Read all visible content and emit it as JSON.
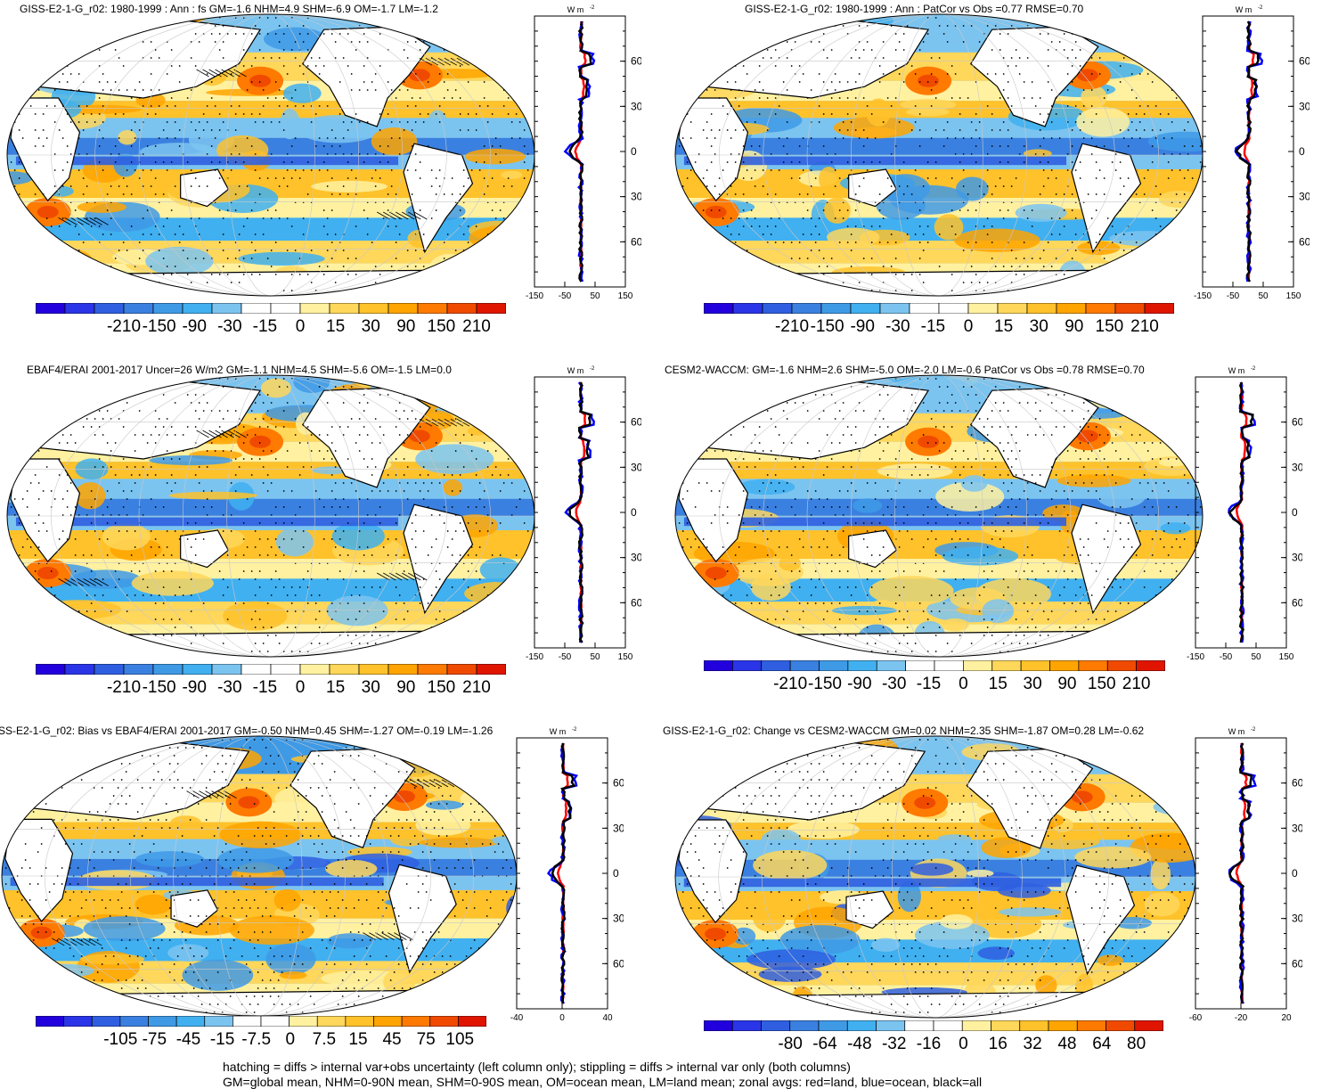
{
  "panels": [
    {
      "id": "p1",
      "title": "GISS-E2-1-G_r02: 1980-1999 : Ann : fs GM=-1.6 NHM=4.9 SHM=-6.9 OM=-1.7 LM=-1.2",
      "colorbar_labels": [
        "-210",
        "-150",
        "-90",
        "-30",
        "-15",
        "0",
        "15",
        "30",
        "90",
        "150",
        "210"
      ],
      "zonal_units": "W m",
      "zonal_units_sup": "-2",
      "zonal_lat_labels": [
        "60N",
        "30N",
        "0",
        "30S",
        "60S"
      ],
      "zonal_x_labels": [
        "-150",
        "-50",
        "50",
        "150"
      ]
    },
    {
      "id": "p2",
      "title": "GISS-E2-1-G_r02: 1980-1999 : Ann : PatCor vs Obs =0.77 RMSE=0.70",
      "colorbar_labels": [
        "-210",
        "-150",
        "-90",
        "-30",
        "-15",
        "0",
        "15",
        "30",
        "90",
        "150",
        "210"
      ],
      "zonal_units": "W m",
      "zonal_units_sup": "-2",
      "zonal_lat_labels": [
        "60N",
        "30N",
        "0",
        "30S",
        "60S"
      ],
      "zonal_x_labels": [
        "-150",
        "-50",
        "50",
        "150"
      ]
    },
    {
      "id": "p3",
      "title": "EBAF4/ERAI 2001-2017 Uncer=26 W/m2 GM=-1.1 NHM=4.5 SHM=-5.6 OM=-1.5 LM=0.0",
      "colorbar_labels": [
        "-210",
        "-150",
        "-90",
        "-30",
        "-15",
        "0",
        "15",
        "30",
        "90",
        "150",
        "210"
      ],
      "zonal_units": "W m",
      "zonal_units_sup": "-2",
      "zonal_lat_labels": [
        "60N",
        "30N",
        "0",
        "30S",
        "60S"
      ],
      "zonal_x_labels": [
        "-150",
        "-50",
        "50",
        "150"
      ]
    },
    {
      "id": "p4",
      "title": "CESM2-WACCM: GM=-1.6 NHM=2.6 SHM=-5.0 OM=-2.0 LM=-0.6 PatCor vs Obs =0.78 RMSE=0.70",
      "colorbar_labels": [
        "-210",
        "-150",
        "-90",
        "-30",
        "-15",
        "0",
        "15",
        "30",
        "90",
        "150",
        "210"
      ],
      "zonal_units": "W m",
      "zonal_units_sup": "-2",
      "zonal_lat_labels": [
        "60N",
        "30N",
        "0",
        "30S",
        "60S"
      ],
      "zonal_x_labels": [
        "-150",
        "-50",
        "50",
        "150"
      ]
    },
    {
      "id": "p5",
      "title": "SS-E2-1-G_r02: Bias vs EBAF4/ERAI 2001-2017 GM=-0.50 NHM=0.45 SHM=-1.27 OM=-0.19 LM=-1.26",
      "colorbar_labels": [
        "-105",
        "-75",
        "-45",
        "-15",
        "-7.5",
        "0",
        "7.5",
        "15",
        "45",
        "75",
        "105"
      ],
      "zonal_units": "W m",
      "zonal_units_sup": "-2",
      "zonal_lat_labels": [
        "60N",
        "30N",
        "0",
        "30S",
        "60S"
      ],
      "zonal_x_labels": [
        "-40",
        "0",
        "40"
      ]
    },
    {
      "id": "p6",
      "title": "GISS-E2-1-G_r02: Change vs CESM2-WACCM GM=0.02 NHM=2.35 SHM=-1.87 OM=0.28 LM=-0.62",
      "colorbar_labels": [
        "-80",
        "-64",
        "-48",
        "-32",
        "-16",
        "0",
        "16",
        "32",
        "48",
        "64",
        "80"
      ],
      "zonal_units": "W m",
      "zonal_units_sup": "-2",
      "zonal_lat_labels": [
        "60N",
        "30N",
        "0",
        "30S",
        "60S"
      ],
      "zonal_x_labels": [
        "-60",
        "-20",
        "20"
      ]
    }
  ],
  "colors": {
    "levels": [
      "#2200dd",
      "#2a35e8",
      "#2f5fe0",
      "#3a80e0",
      "#3f9ae6",
      "#40b0f0",
      "#7cc4f0",
      "#ffffff",
      "#ffffff",
      "#fff1a0",
      "#ffd75a",
      "#ffc22a",
      "#ffa400",
      "#ff7a00",
      "#f04a00",
      "#e01500"
    ],
    "land": "#ffffff",
    "zonal_land": "#ff0000",
    "zonal_ocean": "#0000ff",
    "zonal_all": "#000000"
  },
  "chart_data": [
    {
      "type": "heatmap",
      "title": "GISS-E2-1-G_r02: 1980-1999 : Ann : fs GM=-1.6 NHM=4.9 SHM=-6.9 OM=-1.7 LM=-1.2",
      "colorbar": [
        -210,
        -150,
        -90,
        -30,
        -15,
        0,
        15,
        30,
        90,
        150,
        210
      ],
      "zonal_xlim": [
        -150,
        150
      ],
      "ylim": [
        -90,
        90
      ]
    },
    {
      "type": "heatmap",
      "title": "GISS-E2-1-G_r02: 1980-1999 : Ann : PatCor vs Obs =0.77 RMSE=0.70",
      "colorbar": [
        -210,
        -150,
        -90,
        -30,
        -15,
        0,
        15,
        30,
        90,
        150,
        210
      ],
      "zonal_xlim": [
        -150,
        150
      ],
      "ylim": [
        -90,
        90
      ]
    },
    {
      "type": "heatmap",
      "title": "EBAF4/ERAI 2001-2017 Uncer=26 W/m2 GM=-1.1 NHM=4.5 SHM=-5.6 OM=-1.5 LM=0.0",
      "colorbar": [
        -210,
        -150,
        -90,
        -30,
        -15,
        0,
        15,
        30,
        90,
        150,
        210
      ],
      "zonal_xlim": [
        -150,
        150
      ],
      "ylim": [
        -90,
        90
      ]
    },
    {
      "type": "heatmap",
      "title": "CESM2-WACCM: GM=-1.6 NHM=2.6 SHM=-5.0 OM=-2.0 LM=-0.6 PatCor vs Obs =0.78 RMSE=0.70",
      "colorbar": [
        -210,
        -150,
        -90,
        -30,
        -15,
        0,
        15,
        30,
        90,
        150,
        210
      ],
      "zonal_xlim": [
        -150,
        150
      ],
      "ylim": [
        -90,
        90
      ]
    },
    {
      "type": "heatmap",
      "title": "SS-E2-1-G_r02: Bias vs EBAF4/ERAI 2001-2017 GM=-0.50 NHM=0.45 SHM=-1.27 OM=-0.19 LM=-1.26",
      "colorbar": [
        -105,
        -75,
        -45,
        -15,
        -7.5,
        0,
        7.5,
        15,
        45,
        75,
        105
      ],
      "zonal_xlim": [
        -40,
        40
      ],
      "ylim": [
        -90,
        90
      ]
    },
    {
      "type": "heatmap",
      "title": "GISS-E2-1-G_r02: Change vs CESM2-WACCM GM=0.02 NHM=2.35 SHM=-1.87 OM=0.28 LM=-0.62",
      "colorbar": [
        -80,
        -64,
        -48,
        -32,
        -16,
        0,
        16,
        32,
        48,
        64,
        80
      ],
      "zonal_xlim": [
        -60,
        20
      ],
      "ylim": [
        -90,
        90
      ]
    }
  ],
  "footer": {
    "line1": "hatching = diffs > internal var+obs uncertainty (left column only); stippling = diffs > internal var only (both columns)",
    "line2": "GM=global mean, NHM=0-90N mean, SHM=0-90S mean, OM=ocean mean, LM=land mean; zonal avgs: red=land, blue=ocean, black=all"
  }
}
